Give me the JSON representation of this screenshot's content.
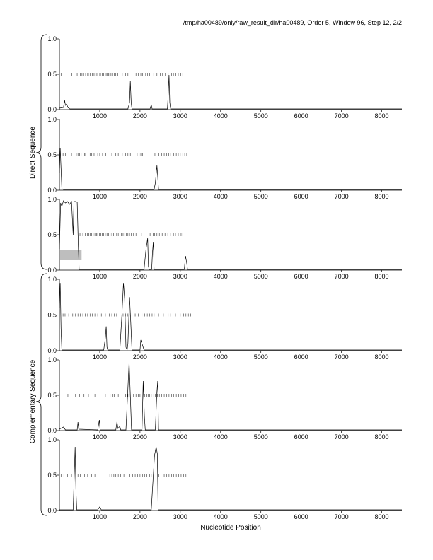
{
  "header": {
    "title": "/tmp/ha00489/only/raw_result_dir/ha00489, Order 5, Window 96, Step 12, 2/2"
  },
  "chart_data": {
    "type": "line",
    "xlabel": "Nucleotide Position",
    "xlim": [
      0,
      8500
    ],
    "ylim": [
      0,
      1.0
    ],
    "x_ticks": [
      1000,
      2000,
      3000,
      4000,
      5000,
      6000,
      7000,
      8000
    ],
    "y_ticks": [
      "0.0",
      "0.5",
      "1.0"
    ],
    "group_labels": [
      "Direct Sequence",
      "Complementary Sequence"
    ],
    "panels": [
      {
        "frame": "direct-1",
        "trace": [
          [
            0,
            0.02
          ],
          [
            100,
            0.03
          ],
          [
            130,
            0.13
          ],
          [
            150,
            0.06
          ],
          [
            180,
            0.08
          ],
          [
            210,
            0.03
          ],
          [
            260,
            0.01
          ],
          [
            600,
            0.01
          ],
          [
            1700,
            0.01
          ],
          [
            1740,
            0.1
          ],
          [
            1760,
            0.4
          ],
          [
            1780,
            0.1
          ],
          [
            1800,
            0.01
          ],
          [
            2250,
            0.01
          ],
          [
            2280,
            0.07
          ],
          [
            2300,
            0.01
          ],
          [
            2680,
            0.01
          ],
          [
            2700,
            0.2
          ],
          [
            2720,
            0.49
          ],
          [
            2740,
            0.1
          ],
          [
            2760,
            0.01
          ],
          [
            8500,
            0.01
          ]
        ],
        "orf_marks": [
          40,
          310,
          360,
          410,
          440,
          480,
          520,
          560,
          600,
          650,
          700,
          720,
          760,
          820,
          860,
          900,
          930,
          960,
          1000,
          1020,
          1060,
          1100,
          1130,
          1160,
          1190,
          1220,
          1250,
          1280,
          1320,
          1360,
          1400,
          1450,
          1500,
          1560,
          1640,
          1700,
          1800,
          1850,
          1900,
          1960,
          2020,
          2060,
          2140,
          2190,
          2240,
          2340,
          2420,
          2500,
          2560,
          2630,
          2700,
          2780,
          2830,
          2890,
          2950,
          3010,
          3060,
          3120,
          3170
        ]
      },
      {
        "frame": "direct-2",
        "trace": [
          [
            0,
            0.25
          ],
          [
            20,
            0.6
          ],
          [
            40,
            0.3
          ],
          [
            60,
            0.02
          ],
          [
            100,
            0.01
          ],
          [
            2350,
            0.01
          ],
          [
            2380,
            0.1
          ],
          [
            2420,
            0.35
          ],
          [
            2440,
            0.2
          ],
          [
            2460,
            0.01
          ],
          [
            8500,
            0.01
          ]
        ],
        "orf_marks": [
          90,
          150,
          300,
          360,
          420,
          460,
          500,
          540,
          620,
          650,
          760,
          800,
          860,
          950,
          1000,
          1070,
          1150,
          1300,
          1400,
          1460,
          1560,
          1640,
          1700,
          1760,
          1930,
          1980,
          2020,
          2060,
          2100,
          2150,
          2220,
          2370,
          2470,
          2540,
          2600,
          2660,
          2710,
          2760,
          2840,
          2900,
          2950,
          3000,
          3060,
          3110,
          3160
        ]
      },
      {
        "frame": "direct-3",
        "trace": [
          [
            0,
            0.3
          ],
          [
            30,
            0.95
          ],
          [
            60,
            0.9
          ],
          [
            100,
            0.98
          ],
          [
            150,
            0.95
          ],
          [
            200,
            0.97
          ],
          [
            250,
            0.93
          ],
          [
            300,
            0.97
          ],
          [
            340,
            0.5
          ],
          [
            360,
            0.97
          ],
          [
            400,
            0.97
          ],
          [
            440,
            0.96
          ],
          [
            470,
            0.3
          ],
          [
            490,
            0.01
          ],
          [
            2100,
            0.01
          ],
          [
            2150,
            0.3
          ],
          [
            2190,
            0.45
          ],
          [
            2210,
            0.05
          ],
          [
            2230,
            0.01
          ],
          [
            2290,
            0.01
          ],
          [
            2310,
            0.25
          ],
          [
            2330,
            0.4
          ],
          [
            2350,
            0.01
          ],
          [
            3100,
            0.01
          ],
          [
            3130,
            0.2
          ],
          [
            3160,
            0.1
          ],
          [
            3180,
            0.01
          ],
          [
            8500,
            0.01
          ]
        ],
        "orf_marks": [
          510,
          580,
          640,
          690,
          730,
          760,
          800,
          840,
          880,
          920,
          950,
          990,
          1030,
          1060,
          1100,
          1140,
          1180,
          1220,
          1260,
          1300,
          1340,
          1380,
          1420,
          1460,
          1500,
          1540,
          1580,
          1620,
          1660,
          1700,
          1740,
          1780,
          1840,
          1900,
          2040,
          2100,
          2250,
          2330,
          2360,
          2420,
          2480,
          2550,
          2620,
          2690,
          2760,
          2830,
          2880,
          2950,
          3020,
          3060,
          3120,
          3170
        ],
        "shaded_region": {
          "x": [
            0,
            550
          ],
          "y": [
            0.14,
            0.29
          ],
          "color": "#bebebe"
        }
      },
      {
        "frame": "complementary-1",
        "trace": [
          [
            0,
            0.6
          ],
          [
            20,
            0.95
          ],
          [
            40,
            0.3
          ],
          [
            60,
            0.01
          ],
          [
            1100,
            0.01
          ],
          [
            1140,
            0.18
          ],
          [
            1160,
            0.34
          ],
          [
            1180,
            0.05
          ],
          [
            1200,
            0.01
          ],
          [
            1500,
            0.01
          ],
          [
            1550,
            0.5
          ],
          [
            1590,
            0.95
          ],
          [
            1620,
            0.72
          ],
          [
            1650,
            0.05
          ],
          [
            1680,
            0.01
          ],
          [
            1700,
            0.1
          ],
          [
            1740,
            0.75
          ],
          [
            1770,
            0.4
          ],
          [
            1800,
            0.01
          ],
          [
            2000,
            0.01
          ],
          [
            2020,
            0.15
          ],
          [
            2060,
            0.08
          ],
          [
            2100,
            0.01
          ],
          [
            8500,
            0.01
          ]
        ],
        "orf_marks": [
          90,
          140,
          230,
          330,
          400,
          460,
          520,
          580,
          640,
          700,
          760,
          820,
          880,
          950,
          1040,
          1140,
          1240,
          1300,
          1360,
          1420,
          1500,
          1580,
          1640,
          1700,
          1760,
          1880,
          1960,
          2050,
          2120,
          2180,
          2240,
          2300,
          2350,
          2400,
          2460,
          2520,
          2580,
          2640,
          2700,
          2760,
          2820,
          2880,
          2940,
          3000,
          3080,
          3140,
          3200,
          3260
        ]
      },
      {
        "frame": "complementary-2",
        "trace": [
          [
            0,
            0.02
          ],
          [
            100,
            0.05
          ],
          [
            150,
            0.01
          ],
          [
            440,
            0.01
          ],
          [
            460,
            0.12
          ],
          [
            480,
            0.02
          ],
          [
            950,
            0.01
          ],
          [
            990,
            0.15
          ],
          [
            1010,
            0.01
          ],
          [
            1400,
            0.01
          ],
          [
            1430,
            0.13
          ],
          [
            1450,
            0.03
          ],
          [
            1500,
            0.06
          ],
          [
            1520,
            0.01
          ],
          [
            1650,
            0.01
          ],
          [
            1700,
            0.6
          ],
          [
            1730,
            0.98
          ],
          [
            1760,
            0.5
          ],
          [
            1790,
            0.01
          ],
          [
            2050,
            0.01
          ],
          [
            2080,
            0.7
          ],
          [
            2110,
            0.2
          ],
          [
            2130,
            0.01
          ],
          [
            2380,
            0.01
          ],
          [
            2420,
            0.55
          ],
          [
            2440,
            0.7
          ],
          [
            2460,
            0.01
          ],
          [
            8500,
            0.01
          ]
        ],
        "orf_marks": [
          210,
          290,
          400,
          500,
          610,
          660,
          720,
          780,
          880,
          1080,
          1140,
          1200,
          1260,
          1330,
          1360,
          1460,
          1640,
          1700,
          1760,
          1840,
          1900,
          1960,
          2000,
          2050,
          2120,
          2170,
          2200,
          2240,
          2280,
          2340,
          2380,
          2430,
          2480,
          2540,
          2600,
          2660,
          2720,
          2780,
          2840,
          2900,
          2960,
          3020,
          3080,
          3140
        ]
      },
      {
        "frame": "complementary-3",
        "trace": [
          [
            0,
            0.01
          ],
          [
            340,
            0.01
          ],
          [
            370,
            0.55
          ],
          [
            390,
            0.9
          ],
          [
            410,
            0.3
          ],
          [
            430,
            0.01
          ],
          [
            950,
            0.01
          ],
          [
            1000,
            0.05
          ],
          [
            1040,
            0.01
          ],
          [
            2280,
            0.01
          ],
          [
            2320,
            0.4
          ],
          [
            2360,
            0.78
          ],
          [
            2400,
            0.9
          ],
          [
            2430,
            0.8
          ],
          [
            2450,
            0.01
          ],
          [
            8500,
            0.01
          ]
        ],
        "orf_marks": [
          40,
          110,
          200,
          300,
          410,
          460,
          520,
          620,
          700,
          800,
          880,
          1200,
          1250,
          1300,
          1350,
          1400,
          1460,
          1520,
          1600,
          1680,
          1750,
          1820,
          1880,
          1940,
          2000,
          2060,
          2120,
          2170,
          2240,
          2280,
          2470,
          2520,
          2600,
          2660,
          2720,
          2780,
          2840,
          2900,
          2960,
          3020,
          3080,
          3140
        ]
      }
    ]
  }
}
